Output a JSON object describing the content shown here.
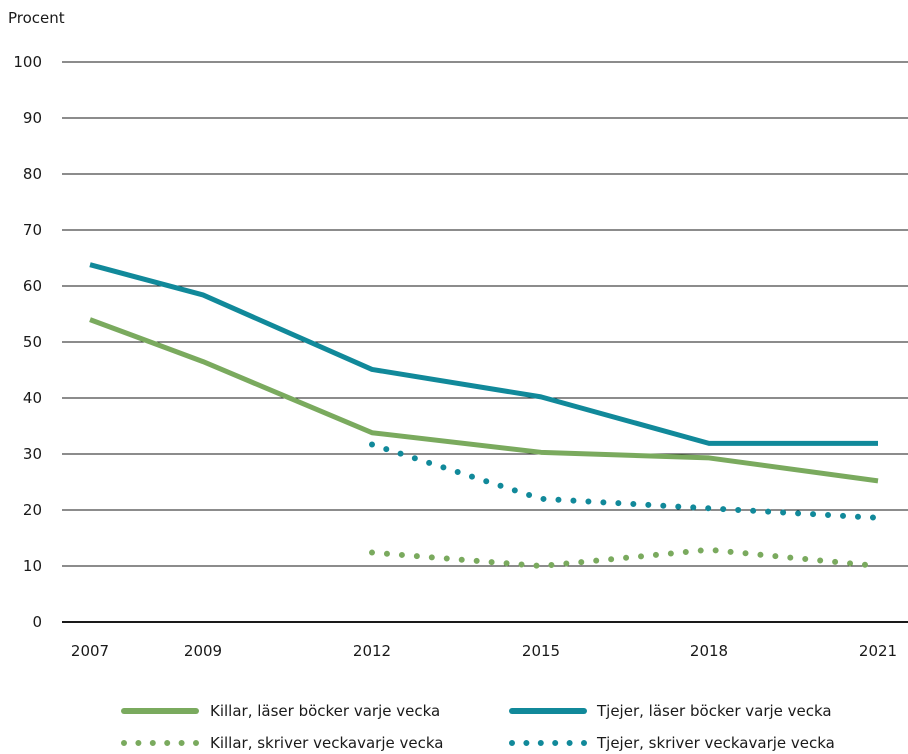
{
  "chart_data": {
    "type": "line",
    "ylabel": "Procent",
    "xlabel": "",
    "ylim": [
      0,
      100
    ],
    "y_ticks": [
      0,
      10,
      20,
      30,
      40,
      50,
      60,
      70,
      80,
      90,
      100
    ],
    "x": [
      2007,
      2009,
      2012,
      2015,
      2018,
      2021
    ],
    "x_ticks": [
      "2007",
      "2009",
      "2012",
      "2015",
      "2018",
      "2021"
    ],
    "grid": "horizontal",
    "legend_position": "bottom",
    "series": [
      {
        "name": "Killar, läser böcker varje vecka",
        "style": "solid",
        "color": "#7aaa5e",
        "values": [
          54,
          46.5,
          33.8,
          30.3,
          29.3,
          25.2
        ]
      },
      {
        "name": "Tjejer, läser böcker varje vecka",
        "style": "solid",
        "color": "#11899a",
        "values": [
          63.8,
          58.4,
          45.1,
          40.2,
          31.9,
          31.9
        ]
      },
      {
        "name": "Killar, skriver veckavarje vecka",
        "style": "dotted",
        "color": "#7aaa5e",
        "values": [
          null,
          null,
          12.4,
          10,
          12.9,
          10
        ]
      },
      {
        "name": "Tjejer, skriver veckavarje vecka",
        "style": "dotted",
        "color": "#11899a",
        "values": [
          null,
          null,
          31.7,
          22,
          20.3,
          18.6
        ]
      }
    ]
  }
}
